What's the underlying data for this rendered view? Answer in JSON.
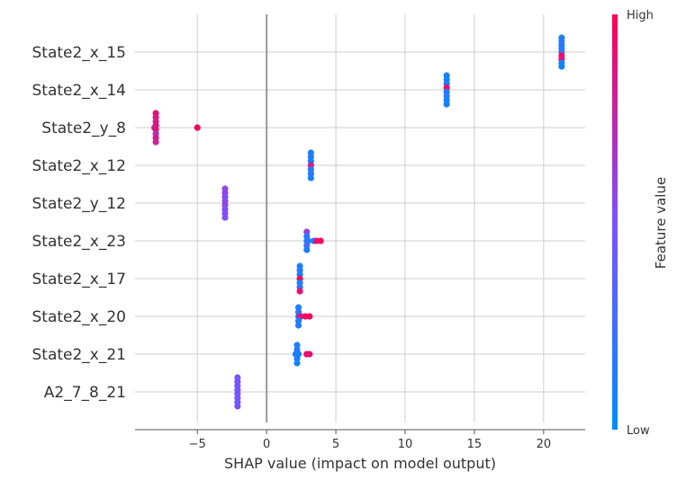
{
  "chart_data": {
    "type": "scatter",
    "subtype": "shap_beeswarm",
    "title": "",
    "xlabel": "SHAP value (impact on model output)",
    "xlim": [
      -9.5,
      23
    ],
    "xticks": [
      -5,
      0,
      5,
      10,
      15,
      20
    ],
    "xtick_labels": [
      "−5",
      "0",
      "5",
      "10",
      "15",
      "20"
    ],
    "grid": true,
    "features": [
      {
        "name": "State2_x_15",
        "points": [
          {
            "x": 21.3,
            "v": 0.1
          },
          {
            "x": 21.3,
            "v": 0.15
          },
          {
            "x": 21.3,
            "v": 0.2
          },
          {
            "x": 21.3,
            "v": 0.1
          },
          {
            "x": 21.3,
            "v": 0.25
          },
          {
            "x": 21.3,
            "v": 0.95
          },
          {
            "x": 21.3,
            "v": 0.9
          },
          {
            "x": 21.3,
            "v": 0.1
          },
          {
            "x": 21.3,
            "v": 0.05
          }
        ]
      },
      {
        "name": "State2_x_14",
        "points": [
          {
            "x": 13.0,
            "v": 0.1
          },
          {
            "x": 13.0,
            "v": 0.05
          },
          {
            "x": 13.0,
            "v": 0.15
          },
          {
            "x": 13.0,
            "v": 0.95
          },
          {
            "x": 13.0,
            "v": 0.1
          },
          {
            "x": 13.0,
            "v": 0.2
          },
          {
            "x": 13.0,
            "v": 0.05
          },
          {
            "x": 13.0,
            "v": 0.1
          }
        ]
      },
      {
        "name": "State2_y_8",
        "points": [
          {
            "x": -8.0,
            "v": 0.9
          },
          {
            "x": -8.0,
            "v": 0.85
          },
          {
            "x": -8.0,
            "v": 0.8
          },
          {
            "x": -8.0,
            "v": 0.95
          },
          {
            "x": -8.1,
            "v": 0.75
          },
          {
            "x": -8.0,
            "v": 0.9
          },
          {
            "x": -8.0,
            "v": 0.7
          },
          {
            "x": -8.0,
            "v": 0.85
          },
          {
            "x": -8.0,
            "v": 0.8
          },
          {
            "x": -5.0,
            "v": 0.98
          }
        ]
      },
      {
        "name": "State2_x_12",
        "points": [
          {
            "x": 3.2,
            "v": 0.1
          },
          {
            "x": 3.2,
            "v": 0.15
          },
          {
            "x": 3.2,
            "v": 0.05
          },
          {
            "x": 3.2,
            "v": 0.85
          },
          {
            "x": 3.2,
            "v": 0.1
          },
          {
            "x": 3.2,
            "v": 0.2
          },
          {
            "x": 3.2,
            "v": 0.1
          }
        ]
      },
      {
        "name": "State2_y_12",
        "points": [
          {
            "x": -3.0,
            "v": 0.55
          },
          {
            "x": -3.0,
            "v": 0.6
          },
          {
            "x": -3.0,
            "v": 0.5
          },
          {
            "x": -3.0,
            "v": 0.55
          },
          {
            "x": -3.0,
            "v": 0.6
          },
          {
            "x": -3.0,
            "v": 0.5
          },
          {
            "x": -3.0,
            "v": 0.55
          },
          {
            "x": -3.0,
            "v": 0.5
          }
        ]
      },
      {
        "name": "State2_x_23",
        "points": [
          {
            "x": 2.9,
            "v": 0.6
          },
          {
            "x": 2.9,
            "v": 0.2
          },
          {
            "x": 2.9,
            "v": 0.1
          },
          {
            "x": 3.0,
            "v": 0.15
          },
          {
            "x": 2.9,
            "v": 0.3
          },
          {
            "x": 3.4,
            "v": 0.1
          },
          {
            "x": 3.6,
            "v": 0.9
          },
          {
            "x": 3.9,
            "v": 0.98
          },
          {
            "x": 2.9,
            "v": 0.1
          }
        ]
      },
      {
        "name": "State2_x_17",
        "points": [
          {
            "x": 2.4,
            "v": 0.1
          },
          {
            "x": 2.4,
            "v": 0.15
          },
          {
            "x": 2.4,
            "v": 0.05
          },
          {
            "x": 2.4,
            "v": 0.95
          },
          {
            "x": 2.4,
            "v": 0.1
          },
          {
            "x": 2.4,
            "v": 0.2
          },
          {
            "x": 2.4,
            "v": 0.9
          }
        ]
      },
      {
        "name": "State2_x_20",
        "points": [
          {
            "x": 2.3,
            "v": 0.1
          },
          {
            "x": 2.3,
            "v": 0.2
          },
          {
            "x": 2.3,
            "v": 0.1
          },
          {
            "x": 2.5,
            "v": 0.15
          },
          {
            "x": 2.4,
            "v": 0.9
          },
          {
            "x": 2.8,
            "v": 0.95
          },
          {
            "x": 3.1,
            "v": 0.98
          },
          {
            "x": 2.3,
            "v": 0.1
          },
          {
            "x": 2.3,
            "v": 0.15
          }
        ]
      },
      {
        "name": "State2_x_21",
        "points": [
          {
            "x": 2.2,
            "v": 0.1
          },
          {
            "x": 2.2,
            "v": 0.15
          },
          {
            "x": 2.1,
            "v": 0.05
          },
          {
            "x": 2.2,
            "v": 0.2
          },
          {
            "x": 2.3,
            "v": 0.1
          },
          {
            "x": 2.9,
            "v": 0.95
          },
          {
            "x": 3.1,
            "v": 0.9
          },
          {
            "x": 2.2,
            "v": 0.1
          },
          {
            "x": 2.2,
            "v": 0.1
          }
        ]
      },
      {
        "name": "A2_7_8_21",
        "points": [
          {
            "x": -2.1,
            "v": 0.45
          },
          {
            "x": -2.1,
            "v": 0.5
          },
          {
            "x": -2.1,
            "v": 0.45
          },
          {
            "x": -2.1,
            "v": 0.5
          },
          {
            "x": -2.1,
            "v": 0.45
          },
          {
            "x": -2.1,
            "v": 0.5
          },
          {
            "x": -2.1,
            "v": 0.45
          },
          {
            "x": -2.1,
            "v": 0.5
          }
        ]
      }
    ],
    "colorbar": {
      "title": "Feature value",
      "high_label": "High",
      "low_label": "Low",
      "low_color": "#008bfb",
      "high_color": "#ff0052"
    }
  }
}
